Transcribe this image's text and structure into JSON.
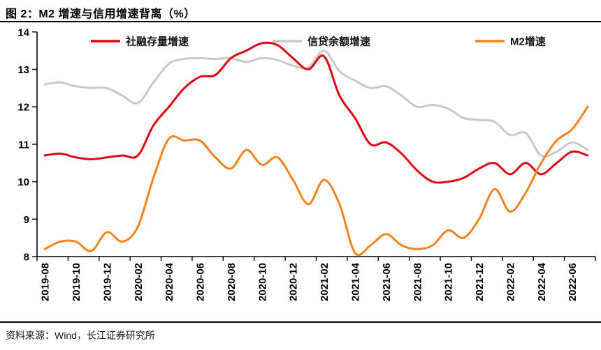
{
  "header": {
    "title": "图 2：M2 增速与信用增速背离（%）"
  },
  "source": {
    "text": "资料来源：Wind，长江证券研究所"
  },
  "colors": {
    "tsf": "#df0612",
    "credit": "#c8c8c8",
    "m2": "#f58220",
    "axis": "#000000",
    "text": "#000000"
  },
  "chart_data": {
    "type": "line",
    "title": "M2 增速与信用增速背离（%）",
    "x": [
      "2019-08",
      "2019-09",
      "2019-10",
      "2019-11",
      "2019-12",
      "2020-01",
      "2020-02",
      "2020-03",
      "2020-04",
      "2020-05",
      "2020-06",
      "2020-07",
      "2020-08",
      "2020-09",
      "2020-10",
      "2020-11",
      "2020-12",
      "2021-01",
      "2021-02",
      "2021-03",
      "2021-04",
      "2021-05",
      "2021-06",
      "2021-07",
      "2021-08",
      "2021-09",
      "2021-10",
      "2021-11",
      "2021-12",
      "2022-01",
      "2022-02",
      "2022-03",
      "2022-04",
      "2022-05",
      "2022-06",
      "2022-07"
    ],
    "xtick_labels": [
      "2019-08",
      "2019-10",
      "2019-12",
      "2020-02",
      "2020-04",
      "2020-06",
      "2020-08",
      "2020-10",
      "2020-12",
      "2021-02",
      "2021-04",
      "2021-06",
      "2021-08",
      "2021-10",
      "2021-12",
      "2022-02",
      "2022-04",
      "2022-06"
    ],
    "series": [
      {
        "id": "tsf-growth",
        "name": "社融存量增速",
        "color": "#df0612",
        "values": [
          10.7,
          10.75,
          10.65,
          10.6,
          10.65,
          10.7,
          10.7,
          11.5,
          12.0,
          12.5,
          12.8,
          12.85,
          13.3,
          13.5,
          13.7,
          13.65,
          13.3,
          13.0,
          13.35,
          12.3,
          11.7,
          11.0,
          11.05,
          10.75,
          10.3,
          10.0,
          10.0,
          10.1,
          10.35,
          10.5,
          10.2,
          10.5,
          10.2,
          10.5,
          10.8,
          10.7
        ]
      },
      {
        "id": "credit-growth",
        "name": "信贷余额增速",
        "color": "#c8c8c8",
        "values": [
          12.6,
          12.65,
          12.55,
          12.5,
          12.5,
          12.3,
          12.1,
          12.65,
          13.15,
          13.28,
          13.3,
          13.28,
          13.3,
          13.2,
          13.3,
          13.25,
          13.1,
          13.05,
          13.5,
          12.95,
          12.7,
          12.5,
          12.55,
          12.3,
          12.0,
          12.05,
          11.95,
          11.7,
          11.65,
          11.6,
          11.25,
          11.3,
          10.7,
          10.8,
          11.05,
          10.85
        ]
      },
      {
        "id": "m2-growth",
        "name": "M2增速",
        "color": "#f58220",
        "values": [
          8.2,
          8.4,
          8.4,
          8.15,
          8.65,
          8.4,
          8.8,
          10.1,
          11.15,
          11.1,
          11.1,
          10.65,
          10.35,
          10.85,
          10.45,
          10.65,
          10.05,
          9.4,
          10.05,
          9.4,
          8.1,
          8.3,
          8.6,
          8.3,
          8.2,
          8.3,
          8.7,
          8.5,
          9.0,
          9.8,
          9.2,
          9.7,
          10.5,
          11.1,
          11.4,
          12.0
        ]
      }
    ],
    "ylim": [
      8,
      14
    ],
    "yticks": [
      8,
      9,
      10,
      11,
      12,
      13,
      14
    ],
    "xlabel": "",
    "ylabel": "",
    "grid": false,
    "legend_position": "top"
  }
}
